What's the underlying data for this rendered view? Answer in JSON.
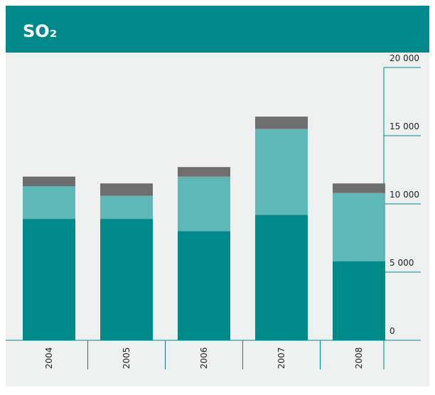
{
  "chart_data": {
    "type": "bar",
    "stacked": true,
    "title": "SO₂",
    "categories": [
      "2004",
      "2005",
      "2006",
      "2007",
      "2008"
    ],
    "series": [
      {
        "color": "#00898a",
        "values": [
          8900,
          8900,
          8000,
          9200,
          5800
        ]
      },
      {
        "color": "#5fb8b8",
        "values": [
          2400,
          1700,
          4000,
          6300,
          5000
        ]
      },
      {
        "color": "#6e6e6e",
        "values": [
          700,
          900,
          700,
          900,
          700
        ]
      }
    ],
    "ylim": [
      0,
      20000
    ],
    "yticks": [
      0,
      {
        "value": 5000,
        "label": "5 000"
      },
      {
        "value": 10000,
        "label": "10 000"
      },
      {
        "value": 15000,
        "label": "15 000"
      },
      {
        "value": 20000,
        "label": "20 000"
      }
    ],
    "axis_side": "right"
  }
}
